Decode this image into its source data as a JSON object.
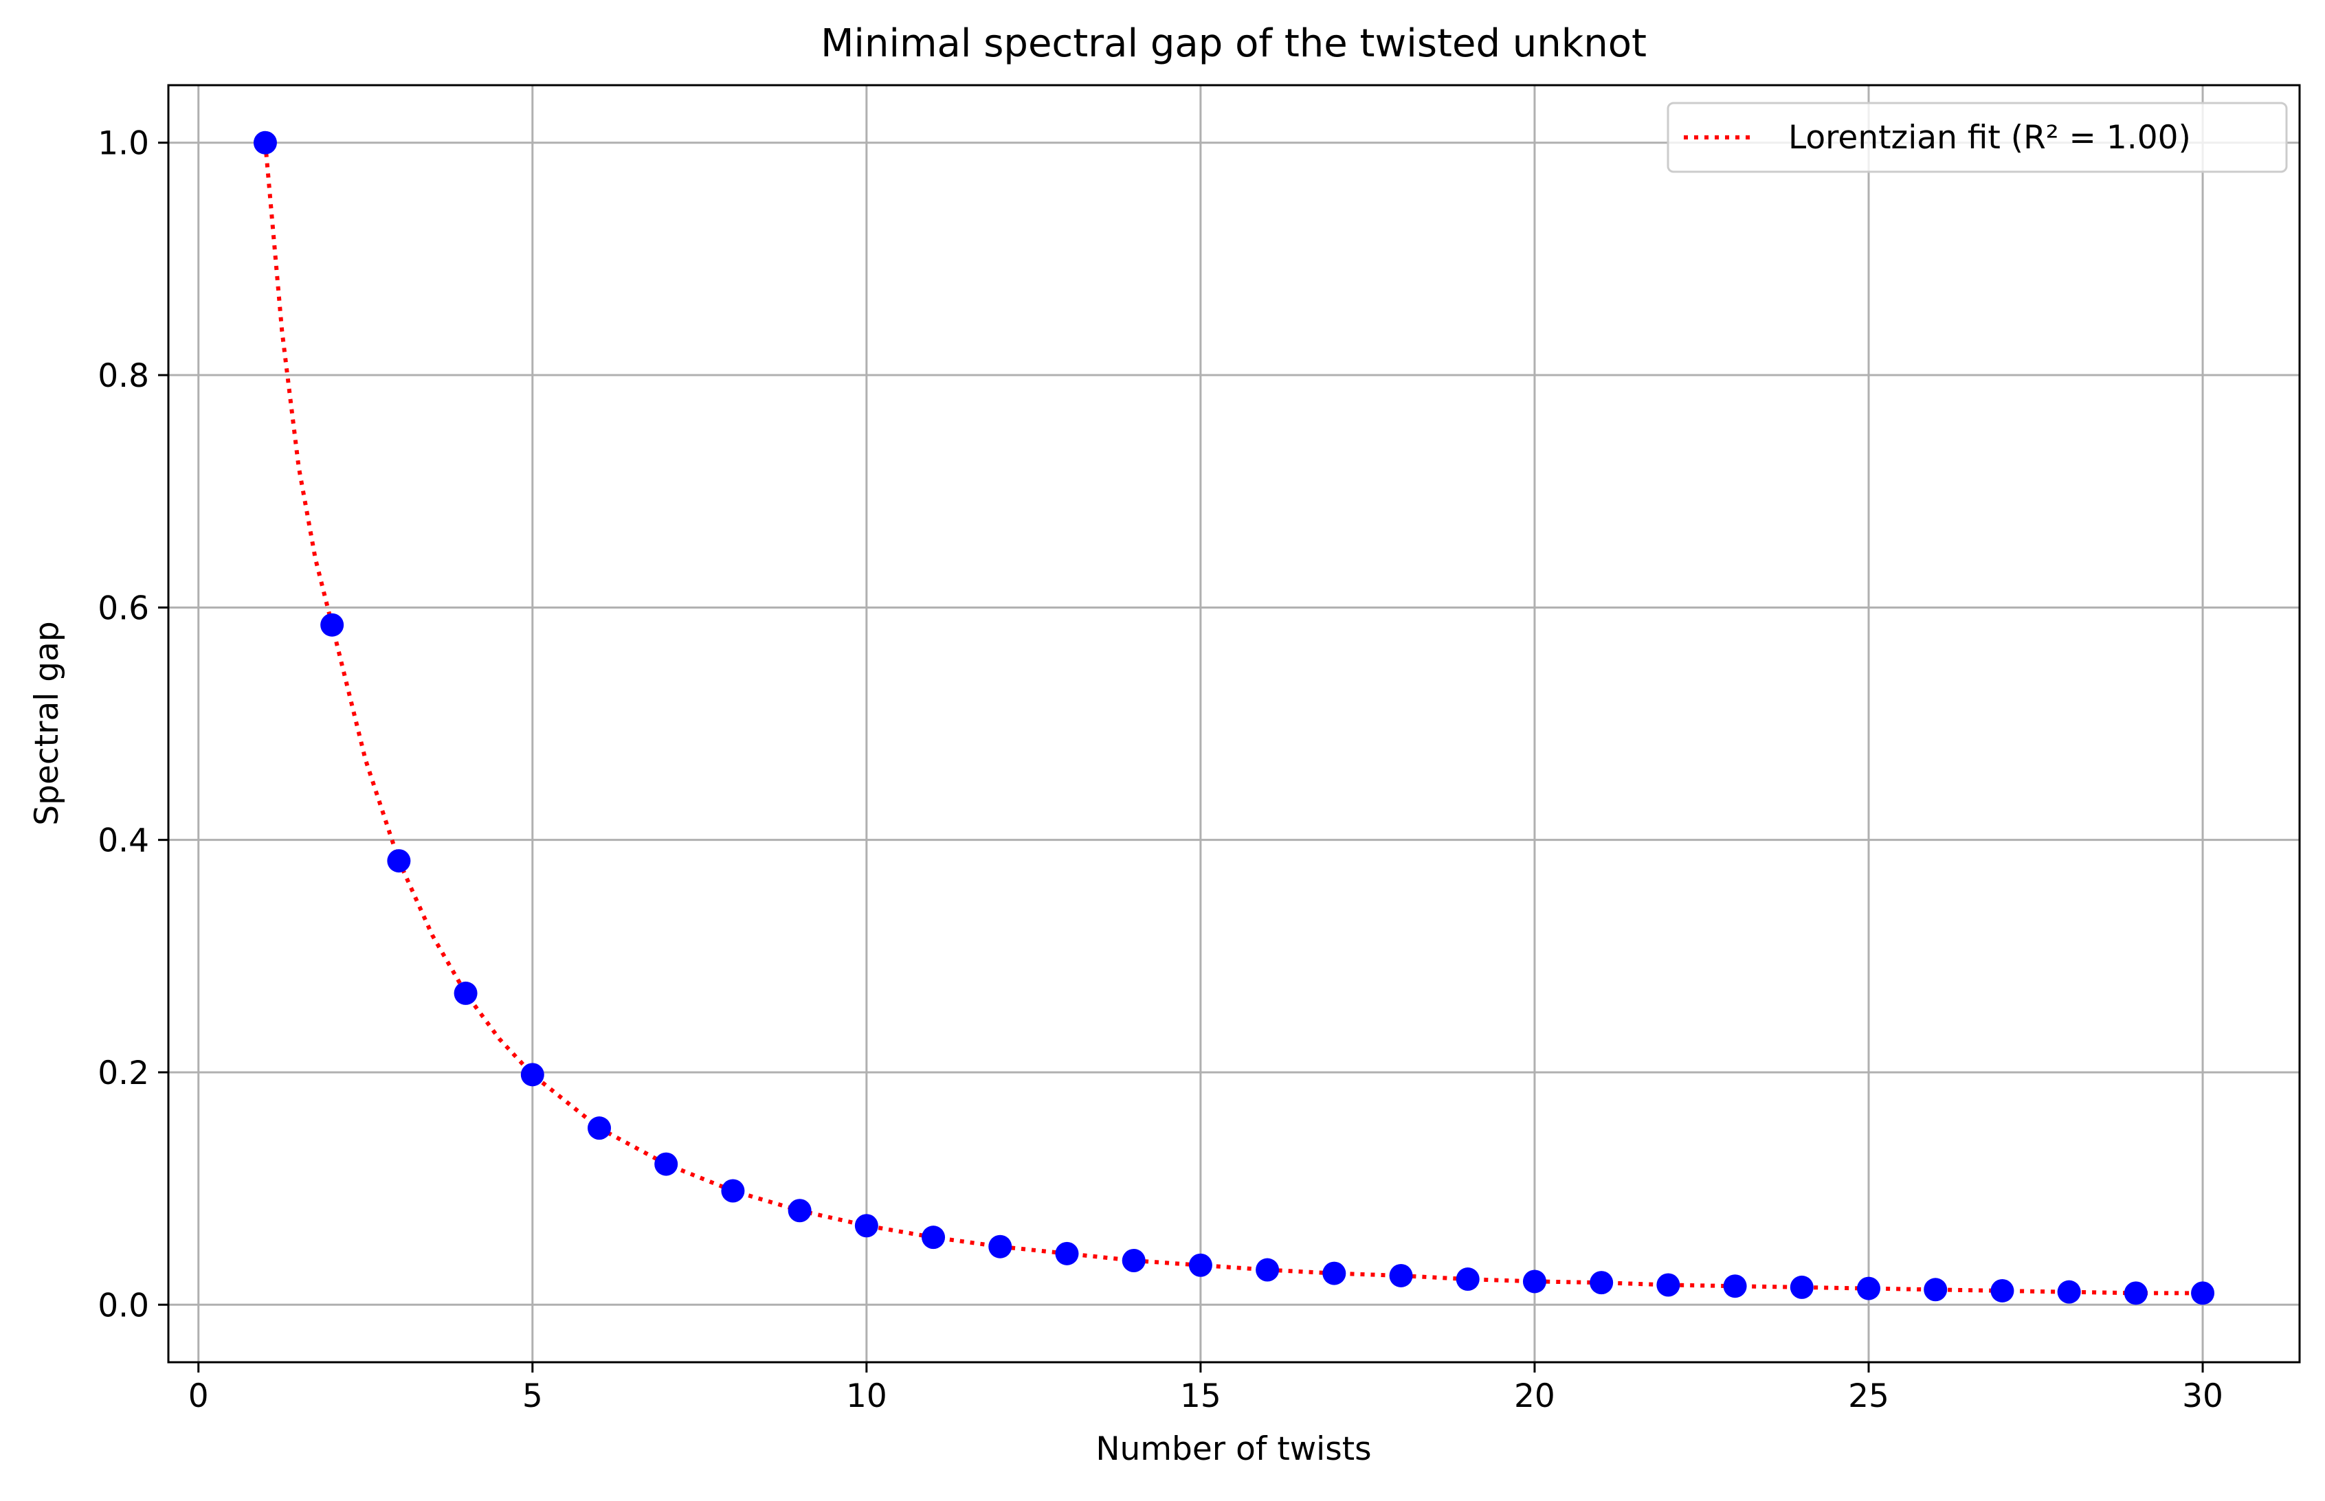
{
  "chart_data": {
    "type": "scatter",
    "title": "Minimal spectral gap of the twisted unknot",
    "xlabel": "Number of twists",
    "ylabel": "Spectral gap",
    "xlim": [
      -0.45,
      31.45
    ],
    "ylim": [
      -0.0495,
      1.0495
    ],
    "xticks": [
      0,
      5,
      10,
      15,
      20,
      25,
      30
    ],
    "xtick_labels": [
      "0",
      "5",
      "10",
      "15",
      "20",
      "25",
      "30"
    ],
    "yticks": [
      0.0,
      0.2,
      0.4,
      0.6,
      0.8,
      1.0
    ],
    "ytick_labels": [
      "0.0",
      "0.2",
      "0.4",
      "0.6",
      "0.8",
      "1.0"
    ],
    "grid": true,
    "legend_position": "top-right",
    "series": [
      {
        "kind": "scatter",
        "color": "#0000ff",
        "x": [
          1,
          2,
          3,
          4,
          5,
          6,
          7,
          8,
          9,
          10,
          11,
          12,
          13,
          14,
          15,
          16,
          17,
          18,
          19,
          20,
          21,
          22,
          23,
          24,
          25,
          26,
          27,
          28,
          29,
          30
        ],
        "y": [
          1.0,
          0.585,
          0.382,
          0.268,
          0.198,
          0.152,
          0.121,
          0.098,
          0.081,
          0.068,
          0.058,
          0.05,
          0.044,
          0.038,
          0.034,
          0.03,
          0.027,
          0.025,
          0.022,
          0.02,
          0.019,
          0.017,
          0.016,
          0.015,
          0.014,
          0.013,
          0.012,
          0.011,
          0.01,
          0.01
        ]
      },
      {
        "kind": "line",
        "name": "Lorentzian fit (R² = 1.00)",
        "color": "#ff0000",
        "style": "dotted",
        "x": [
          1.0,
          1.25,
          1.5,
          1.75,
          2.0,
          2.5,
          3.0,
          3.5,
          4.0,
          4.5,
          5.0,
          6.0,
          7.0,
          8.0,
          9.0,
          10.0,
          11.0,
          12.0,
          13.0,
          14.0,
          15.0,
          16.0,
          17.0,
          18.0,
          19.0,
          20.0,
          21.0,
          22.0,
          23.0,
          24.0,
          25.0,
          26.0,
          27.0,
          28.0,
          29.0,
          30.0
        ],
        "y": [
          1.0,
          0.838,
          0.721,
          0.642,
          0.585,
          0.469,
          0.382,
          0.318,
          0.268,
          0.229,
          0.198,
          0.152,
          0.121,
          0.098,
          0.081,
          0.068,
          0.058,
          0.05,
          0.044,
          0.038,
          0.034,
          0.03,
          0.027,
          0.025,
          0.022,
          0.02,
          0.019,
          0.017,
          0.016,
          0.015,
          0.014,
          0.013,
          0.012,
          0.011,
          0.01,
          0.01
        ]
      }
    ]
  }
}
